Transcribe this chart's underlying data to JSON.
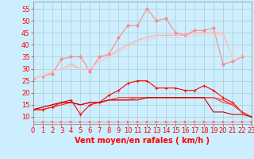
{
  "x": [
    0,
    1,
    2,
    3,
    4,
    5,
    6,
    7,
    8,
    9,
    10,
    11,
    12,
    13,
    14,
    15,
    16,
    17,
    18,
    19,
    20,
    21,
    22,
    23
  ],
  "series": [
    {
      "color": "#ff8888",
      "alpha": 1.0,
      "linewidth": 0.8,
      "marker": "D",
      "markersize": 2,
      "y": [
        26,
        27,
        28,
        34,
        35,
        35,
        29,
        35,
        36,
        43,
        48,
        48,
        55,
        50,
        51,
        45,
        44,
        46,
        46,
        47,
        32,
        33,
        35,
        null
      ]
    },
    {
      "color": "#ffaaaa",
      "alpha": 1.0,
      "linewidth": 0.8,
      "marker": null,
      "y": [
        26,
        27,
        29,
        30,
        32,
        30,
        30,
        33,
        35,
        38,
        40,
        42,
        43,
        44,
        44,
        44,
        44,
        45,
        45,
        45,
        45,
        35,
        35,
        null
      ]
    },
    {
      "color": "#ffcccc",
      "alpha": 1.0,
      "linewidth": 0.8,
      "marker": null,
      "y": [
        26,
        27,
        29,
        30,
        31,
        30,
        30,
        33,
        35,
        37,
        39,
        41,
        42,
        43,
        43,
        43,
        43,
        44,
        44,
        44,
        44,
        35,
        35,
        null
      ]
    },
    {
      "color": "#ff0000",
      "alpha": 1.0,
      "linewidth": 0.8,
      "marker": "+",
      "markersize": 3,
      "y": [
        13,
        13,
        14,
        16,
        17,
        11,
        15,
        16,
        19,
        21,
        24,
        25,
        25,
        22,
        22,
        22,
        21,
        21,
        23,
        21,
        18,
        16,
        12,
        10
      ]
    },
    {
      "color": "#ff2222",
      "alpha": 1.0,
      "linewidth": 0.8,
      "marker": null,
      "y": [
        13,
        13,
        14,
        15,
        16,
        15,
        16,
        16,
        17,
        18,
        18,
        18,
        18,
        18,
        18,
        18,
        18,
        18,
        18,
        18,
        17,
        15,
        12,
        10
      ]
    },
    {
      "color": "#ff4444",
      "alpha": 1.0,
      "linewidth": 0.8,
      "marker": null,
      "y": [
        13,
        14,
        15,
        16,
        16,
        15,
        16,
        16,
        17,
        17,
        17,
        18,
        18,
        18,
        18,
        18,
        18,
        18,
        18,
        18,
        16,
        15,
        12,
        10
      ]
    },
    {
      "color": "#cc0000",
      "alpha": 1.0,
      "linewidth": 0.8,
      "marker": null,
      "y": [
        13,
        14,
        15,
        16,
        16,
        15,
        16,
        16,
        17,
        17,
        17,
        17,
        18,
        18,
        18,
        18,
        18,
        18,
        18,
        12,
        12,
        11,
        11,
        10
      ]
    },
    {
      "color": "#ff6666",
      "alpha": 0.8,
      "linewidth": 0.6,
      "marker": ">",
      "markersize": 2,
      "y": [
        8,
        8,
        8,
        8,
        8,
        8,
        8,
        8,
        8,
        8,
        8,
        8,
        8,
        8,
        8,
        8,
        8,
        8,
        8,
        8,
        8,
        8,
        8,
        8
      ]
    }
  ],
  "xlabel": "Vent moyen/en rafales ( km/h )",
  "xlim": [
    0,
    23
  ],
  "ylim": [
    7,
    58
  ],
  "yticks": [
    10,
    15,
    20,
    25,
    30,
    35,
    40,
    45,
    50,
    55
  ],
  "xticks": [
    0,
    1,
    2,
    3,
    4,
    5,
    6,
    7,
    8,
    9,
    10,
    11,
    12,
    13,
    14,
    15,
    16,
    17,
    18,
    19,
    20,
    21,
    22,
    23
  ],
  "bg_color": "#cceeff",
  "grid_color": "#aacccc",
  "xlabel_fontsize": 7,
  "tick_fontsize": 6
}
